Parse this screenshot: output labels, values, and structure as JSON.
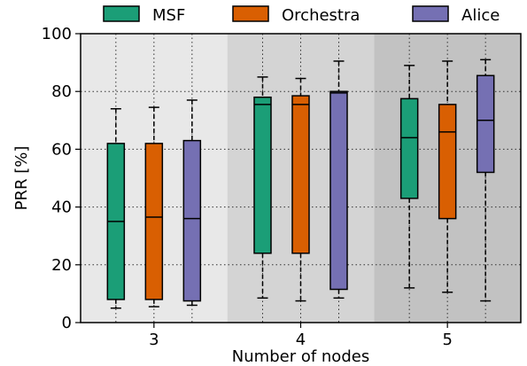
{
  "chart_data": {
    "type": "box",
    "xlabel": "Number of nodes",
    "ylabel": "PRR [%]",
    "ylim": [
      0,
      100
    ],
    "yticks": [
      0,
      20,
      40,
      60,
      80,
      100
    ],
    "categories": [
      "3",
      "4",
      "5"
    ],
    "grid": "dotted",
    "legend_position": "top",
    "group_backgrounds": [
      "#e8e8e8",
      "#d4d4d4",
      "#c2c2c2"
    ],
    "series": [
      {
        "name": "MSF",
        "color": "#1b9e77",
        "boxes": [
          {
            "whisker_low": 5,
            "q1": 8,
            "median": 35,
            "q3": 62,
            "whisker_high": 74
          },
          {
            "whisker_low": 8.5,
            "q1": 24,
            "median": 75.5,
            "q3": 78,
            "whisker_high": 85
          },
          {
            "whisker_low": 12,
            "q1": 43,
            "median": 64,
            "q3": 77.5,
            "whisker_high": 89
          }
        ]
      },
      {
        "name": "Orchestra",
        "color": "#d95f02",
        "boxes": [
          {
            "whisker_low": 5.5,
            "q1": 8,
            "median": 36.5,
            "q3": 62,
            "whisker_high": 74.5
          },
          {
            "whisker_low": 7.5,
            "q1": 24,
            "median": 75.5,
            "q3": 78.5,
            "whisker_high": 84.5
          },
          {
            "whisker_low": 10.5,
            "q1": 36,
            "median": 66,
            "q3": 75.5,
            "whisker_high": 90.5
          }
        ]
      },
      {
        "name": "Alice",
        "color": "#7570b3",
        "boxes": [
          {
            "whisker_low": 6,
            "q1": 7.5,
            "median": 36,
            "q3": 63,
            "whisker_high": 77
          },
          {
            "whisker_low": 8.5,
            "q1": 11.5,
            "median": 79.5,
            "q3": 80,
            "whisker_high": 90.5
          },
          {
            "whisker_low": 7.5,
            "q1": 52,
            "median": 70,
            "q3": 85.5,
            "whisker_high": 91
          }
        ]
      }
    ]
  }
}
